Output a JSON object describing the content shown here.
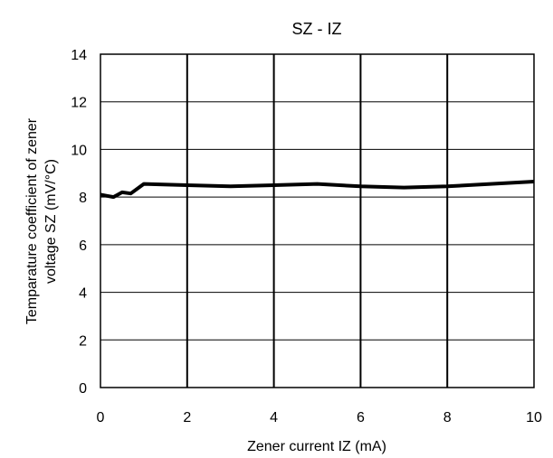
{
  "chart_data": {
    "type": "line",
    "title": "SZ - IZ",
    "xlabel": "Zener current IZ (mA)",
    "ylabel_lines": [
      "Temparature coefficient of zener",
      "voltage SZ (mV/°C)"
    ],
    "xlim": [
      0,
      10
    ],
    "ylim": [
      0,
      14
    ],
    "x_ticks": [
      0,
      2,
      4,
      6,
      8,
      10
    ],
    "y_ticks": [
      0,
      2,
      4,
      6,
      8,
      10,
      12,
      14
    ],
    "grid": {
      "x": true,
      "y": true
    },
    "colors": {
      "line": "#000000",
      "grid": "#000000",
      "background": "#ffffff"
    },
    "series": [
      {
        "x": [
          0,
          0.15,
          0.3,
          0.5,
          0.7,
          1.0,
          2,
          3,
          4,
          5,
          6,
          7,
          8,
          9,
          10
        ],
        "y": [
          8.1,
          8.05,
          8.0,
          8.2,
          8.15,
          8.55,
          8.5,
          8.45,
          8.5,
          8.55,
          8.45,
          8.4,
          8.45,
          8.55,
          8.65
        ]
      }
    ]
  }
}
